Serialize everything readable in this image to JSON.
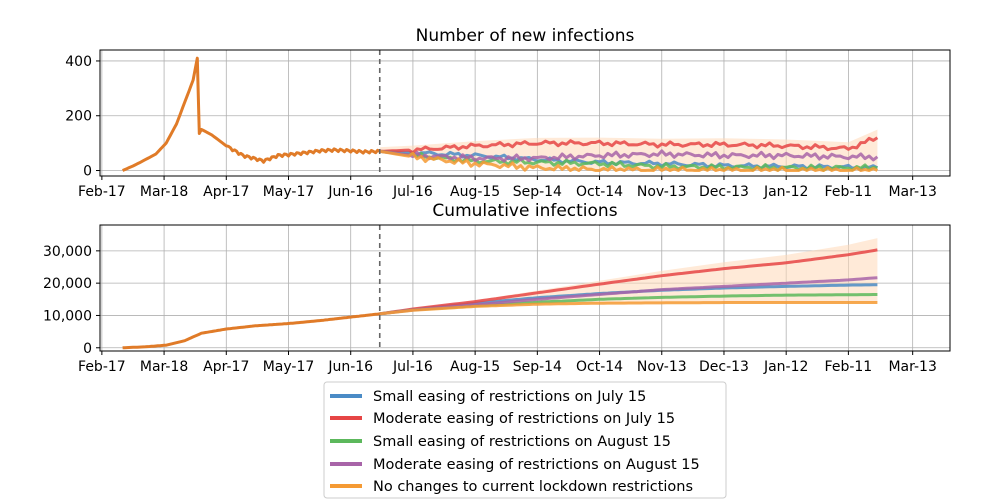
{
  "chart_data": [
    {
      "type": "line",
      "title": "Number of new infections",
      "xlabel": "",
      "ylabel": "",
      "x_tick_labels": [
        "Feb-17",
        "Mar-18",
        "Apr-17",
        "May-17",
        "Jun-16",
        "Jul-16",
        "Aug-15",
        "Sep-14",
        "Oct-14",
        "Nov-13",
        "Dec-13",
        "Jan-12",
        "Feb-11",
        "Mar-13"
      ],
      "y_ticks": [
        0,
        200,
        400
      ],
      "y_tick_labels": [
        "0",
        "200",
        "400"
      ],
      "ylim": [
        -20,
        440
      ],
      "grid": true,
      "intervention_marker": "Jun-30 (dashed vertical line)",
      "historical": {
        "name": "",
        "x": [
          "Feb-27",
          "Mar-04",
          "Mar-09",
          "Mar-14",
          "Mar-19",
          "Mar-24",
          "Mar-28",
          "Apr-01",
          "Apr-03",
          "Apr-04",
          "Apr-05",
          "Apr-10",
          "Apr-17",
          "Apr-25",
          "May-05",
          "May-12",
          "May-17",
          "May-25",
          "Jun-01",
          "Jun-08",
          "Jun-16",
          "Jun-22",
          "Jun-30"
        ],
        "values": [
          0,
          20,
          40,
          60,
          100,
          170,
          250,
          330,
          410,
          135,
          150,
          130,
          90,
          55,
          35,
          55,
          58,
          65,
          72,
          75,
          72,
          68,
          70
        ]
      },
      "series": [
        {
          "name": "Small easing of restrictions on July 15",
          "color": "#4a8bc6",
          "x": [
            "Jun-30",
            "Jul-16",
            "Aug-15",
            "Sep-14",
            "Oct-14",
            "Nov-13",
            "Dec-13",
            "Jan-12",
            "Feb-11",
            "Feb-25"
          ],
          "values": [
            70,
            65,
            55,
            40,
            30,
            25,
            18,
            15,
            12,
            10
          ]
        },
        {
          "name": "Moderate easing of restrictions on July 15",
          "color": "#e64545",
          "x": [
            "Jun-30",
            "Jul-16",
            "Aug-15",
            "Sep-14",
            "Oct-14",
            "Nov-13",
            "Dec-13",
            "Jan-12",
            "Feb-11",
            "Feb-25"
          ],
          "values": [
            70,
            75,
            90,
            100,
            100,
            95,
            95,
            90,
            80,
            120
          ]
        },
        {
          "name": "Small easing of restrictions on August 15",
          "color": "#5cb85c",
          "x": [
            "Jun-30",
            "Jul-16",
            "Aug-15",
            "Sep-14",
            "Oct-14",
            "Nov-13",
            "Dec-13",
            "Jan-12",
            "Feb-11",
            "Feb-25"
          ],
          "values": [
            70,
            55,
            35,
            30,
            25,
            15,
            12,
            10,
            10,
            10
          ]
        },
        {
          "name": "Moderate easing of restrictions on August 15",
          "color": "#a864a8",
          "x": [
            "Jun-30",
            "Jul-16",
            "Aug-15",
            "Sep-14",
            "Oct-14",
            "Nov-13",
            "Dec-13",
            "Jan-12",
            "Feb-11",
            "Feb-25"
          ],
          "values": [
            70,
            55,
            45,
            45,
            55,
            60,
            55,
            55,
            50,
            50
          ]
        },
        {
          "name": "No changes to current lockdown restrictions",
          "color": "#f59a33",
          "x": [
            "Jun-30",
            "Jul-16",
            "Aug-15",
            "Sep-14",
            "Oct-14",
            "Nov-13",
            "Dec-13",
            "Jan-12",
            "Feb-11",
            "Feb-25"
          ],
          "values": [
            70,
            50,
            25,
            10,
            3,
            2,
            1,
            1,
            0,
            0
          ]
        }
      ]
    },
    {
      "type": "line",
      "title": "Cumulative infections",
      "xlabel": "",
      "ylabel": "",
      "x_tick_labels": [
        "Feb-17",
        "Mar-18",
        "Apr-17",
        "May-17",
        "Jun-16",
        "Jul-16",
        "Aug-15",
        "Sep-14",
        "Oct-14",
        "Nov-13",
        "Dec-13",
        "Jan-12",
        "Feb-11",
        "Mar-13"
      ],
      "y_ticks": [
        0,
        10000,
        20000,
        30000
      ],
      "y_tick_labels": [
        "0",
        "10,000",
        "20,000",
        "30,000"
      ],
      "ylim": [
        -1000,
        38000
      ],
      "grid": true,
      "intervention_marker": "Jun-30 (dashed vertical line)",
      "historical": {
        "name": "",
        "x": [
          "Feb-27",
          "Mar-09",
          "Mar-19",
          "Mar-28",
          "Apr-05",
          "Apr-17",
          "May-01",
          "May-17",
          "Jun-01",
          "Jun-16",
          "Jun-30"
        ],
        "values": [
          0,
          300,
          800,
          2200,
          4500,
          5800,
          6800,
          7500,
          8400,
          9500,
          10500
        ]
      },
      "series": [
        {
          "name": "Small easing of restrictions on July 15",
          "color": "#4a8bc6",
          "x": [
            "Jun-30",
            "Jul-16",
            "Aug-15",
            "Sep-14",
            "Oct-14",
            "Nov-13",
            "Dec-13",
            "Jan-12",
            "Feb-11",
            "Feb-25"
          ],
          "values": [
            10500,
            11800,
            13800,
            15500,
            16800,
            17800,
            18500,
            19000,
            19400,
            19500
          ]
        },
        {
          "name": "Moderate easing of restrictions on July 15",
          "color": "#e64545",
          "x": [
            "Jun-30",
            "Jul-16",
            "Aug-15",
            "Sep-14",
            "Oct-14",
            "Nov-13",
            "Dec-13",
            "Jan-12",
            "Feb-11",
            "Feb-25"
          ],
          "values": [
            10500,
            12000,
            14300,
            17000,
            19700,
            22300,
            24500,
            26300,
            28800,
            30300
          ]
        },
        {
          "name": "Small easing of restrictions on August 15",
          "color": "#5cb85c",
          "x": [
            "Jun-30",
            "Jul-16",
            "Aug-15",
            "Sep-14",
            "Oct-14",
            "Nov-13",
            "Dec-13",
            "Jan-12",
            "Feb-11",
            "Feb-25"
          ],
          "values": [
            10500,
            11700,
            13000,
            14100,
            15000,
            15600,
            16000,
            16300,
            16400,
            16500
          ]
        },
        {
          "name": "Moderate easing of restrictions on August 15",
          "color": "#a864a8",
          "x": [
            "Jun-30",
            "Jul-16",
            "Aug-15",
            "Sep-14",
            "Oct-14",
            "Nov-13",
            "Dec-13",
            "Jan-12",
            "Feb-11",
            "Feb-25"
          ],
          "values": [
            10500,
            11700,
            13300,
            15000,
            16500,
            18000,
            19000,
            20000,
            21000,
            21700
          ]
        },
        {
          "name": "No changes to current lockdown restrictions",
          "color": "#f59a33",
          "x": [
            "Jun-30",
            "Jul-16",
            "Aug-15",
            "Sep-14",
            "Oct-14",
            "Nov-13",
            "Dec-13",
            "Jan-12",
            "Feb-11",
            "Feb-25"
          ],
          "values": [
            10500,
            11600,
            12800,
            13500,
            13800,
            13900,
            14000,
            14000,
            14000,
            14000
          ]
        }
      ]
    }
  ],
  "legend": {
    "placement": "bottom-center",
    "items": [
      {
        "label": "Small easing of restrictions on July 15",
        "color": "#4a8bc6"
      },
      {
        "label": "Moderate easing of restrictions on July 15",
        "color": "#e64545"
      },
      {
        "label": "Small easing of restrictions on August 15",
        "color": "#5cb85c"
      },
      {
        "label": "Moderate easing of restrictions on August 15",
        "color": "#a864a8"
      },
      {
        "label": "No changes to current lockdown restrictions",
        "color": "#f59a33"
      }
    ]
  },
  "colors": {
    "historical": "#e07b28",
    "grid": "#b0b0b0",
    "band": "#ffd9b8"
  }
}
